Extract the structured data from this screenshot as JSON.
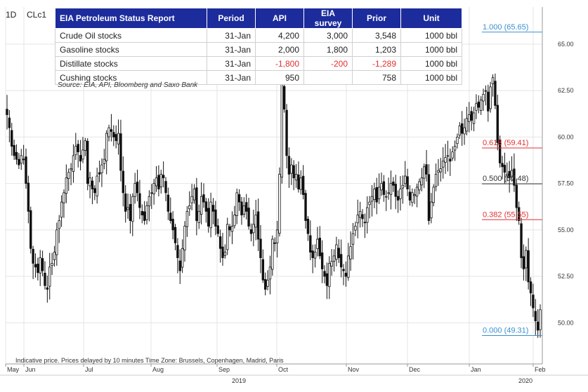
{
  "header": {
    "interval": "1D",
    "symbol": "CLc1"
  },
  "table": {
    "headers": [
      "EIA Petroleum Status Report",
      "Period",
      "API",
      "EIA survey",
      "Prior",
      "Unit"
    ],
    "rows": [
      [
        "Crude Oil stocks",
        "31-Jan",
        "4,200",
        "3,000",
        "3,548",
        "1000 bbl"
      ],
      [
        "Gasoline stocks",
        "31-Jan",
        "2,000",
        "1,800",
        "1,203",
        "1000 bbl"
      ],
      [
        "Distillate stocks",
        "31-Jan",
        "-1,800",
        "-200",
        "-1,289",
        "1000 bbl"
      ],
      [
        "Cushing stocks",
        "31-Jan",
        "950",
        "",
        "758",
        "1000 bbl"
      ]
    ],
    "source": "Source: EIA, API, Bloomberg and Saxo Bank"
  },
  "footer": {
    "note": "Indicative price. Prices delayed by 10 minutes    Time Zone: Brussels, Copenhagen, Madrid, Paris"
  },
  "colors": {
    "header_bg": "#1c2c9c",
    "negative": "#e03030",
    "fib_blue": "#3a8fd0",
    "fib_red": "#e03030",
    "fib_black": "#333333"
  },
  "chart_data": {
    "type": "candlestick",
    "y_axis": {
      "min": 48.5,
      "max": 67.0,
      "ticks": [
        "50.00",
        "52.50",
        "55.00",
        "57.50",
        "60.00",
        "62.50",
        "65.00"
      ]
    },
    "x_axis": {
      "month_labels": [
        "May",
        "Jun",
        "Jul",
        "Aug",
        "Sep",
        "Oct",
        "Nov",
        "Dec",
        "Jan",
        "Feb"
      ],
      "year_labels": [
        "2019",
        "2020"
      ]
    },
    "fib_levels": [
      {
        "ratio": "1.000",
        "price": 65.65,
        "label": "1.000 (65.65)",
        "color": "blue"
      },
      {
        "ratio": "0.618",
        "price": 59.41,
        "label": "0.618 (59.41)",
        "color": "red"
      },
      {
        "ratio": "0.500",
        "price": 57.48,
        "label": "0.500 (57.48)",
        "color": "black"
      },
      {
        "ratio": "0.382",
        "price": 55.55,
        "label": "0.382 (55.55)",
        "color": "red"
      },
      {
        "ratio": "0.000",
        "price": 49.31,
        "label": "0.000 (49.31)",
        "color": "blue"
      }
    ],
    "closes": [
      61.2,
      60.5,
      59.5,
      59.0,
      58.8,
      58.5,
      59.0,
      58.8,
      57.5,
      56.0,
      54.0,
      53.2,
      53.0,
      52.7,
      53.5,
      52.8,
      52.0,
      51.8,
      53.0,
      53.2,
      53.8,
      55.0,
      55.5,
      56.5,
      57.0,
      57.8,
      58.1,
      58.3,
      59.0,
      59.5,
      59.2,
      58.7,
      59.3,
      59.8,
      57.5,
      57.8,
      57.2,
      57.0,
      57.9,
      58.0,
      58.5,
      58.8,
      60.2,
      60.5,
      60.3,
      60.0,
      59.8,
      60.2,
      58.2,
      57.0,
      56.0,
      56.2,
      55.5,
      56.8,
      57.5,
      57.0,
      56.2,
      55.8,
      55.5,
      56.3,
      56.8,
      57.0,
      57.5,
      57.8,
      57.2,
      58.0,
      57.8,
      57.0,
      56.0,
      55.5,
      55.0,
      54.3,
      53.5,
      52.8,
      54.0,
      55.2,
      56.0,
      56.3,
      56.8,
      57.2,
      55.5,
      56.0,
      56.8,
      56.5,
      56.0,
      55.2,
      56.5,
      56.0,
      55.2,
      54.8,
      54.0,
      53.5,
      53.8,
      55.3,
      55.0,
      55.2,
      55.8,
      57.0,
      56.5,
      55.8,
      56.3,
      56.0,
      55.2,
      54.8,
      55.3,
      55.8,
      54.5,
      53.5,
      52.3,
      51.8,
      52.3,
      53.0,
      54.5,
      54.3,
      55.0,
      58.0,
      62.9,
      61.5,
      59.0,
      58.0,
      58.5,
      57.8,
      58.0,
      57.2,
      57.8,
      56.9,
      55.5,
      54.8,
      53.8,
      53.5,
      53.8,
      54.5,
      53.6,
      52.9,
      52.5,
      52.0,
      53.2,
      53.3,
      53.6,
      54.2,
      53.5,
      53.0,
      52.8,
      52.5,
      53.6,
      54.1,
      54.8,
      55.2,
      55.8,
      56.0,
      55.6,
      55.4,
      56.2,
      56.5,
      56.8,
      57.2,
      56.5,
      57.3,
      57.5,
      56.9,
      56.8,
      57.0,
      57.5,
      57.4,
      56.8,
      56.6,
      57.2,
      57.4,
      57.9,
      57.2,
      56.6,
      57.0,
      56.9,
      57.3,
      57.6,
      57.8,
      58.4,
      58.0,
      55.5,
      56.5,
      57.3,
      58.0,
      58.2,
      58.3,
      58.7,
      58.9,
      59.0,
      58.7,
      59.2,
      59.5,
      60.0,
      60.6,
      60.2,
      60.5,
      61.0,
      61.2,
      60.9,
      61.3,
      61.8,
      61.6,
      62.0,
      62.3,
      62.5,
      61.4,
      62.7,
      63.2,
      61.7,
      59.7,
      58.6,
      58.4,
      58.1,
      58.0,
      57.8,
      58.2,
      57.4,
      56.2,
      55.5,
      53.5,
      52.9,
      53.9,
      52.2,
      51.6,
      50.8,
      50.1,
      49.6,
      50.7
    ]
  }
}
